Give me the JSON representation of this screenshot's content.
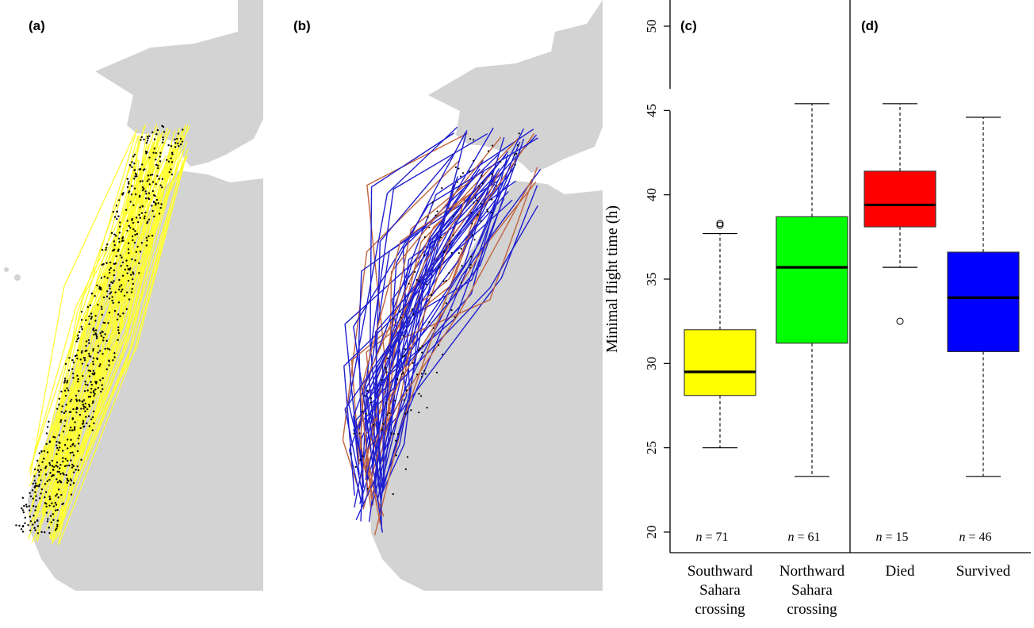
{
  "panels": {
    "a": "(a)",
    "b": "(b)",
    "c": "(c)",
    "d": "(d)"
  },
  "colors": {
    "land": "#d3d3d3",
    "tracks_a": "#ffff33",
    "tracks_b_survived": "#1f1fd0",
    "tracks_b_died": "#c0633f",
    "points": "#000000"
  },
  "chart_data": {
    "type": "box",
    "ylabel": "Minimal flight time (h)",
    "ylim": [
      19.5,
      51
    ],
    "yticks": [
      20,
      25,
      30,
      35,
      40,
      45,
      50
    ],
    "groups": [
      {
        "panel": "(c)",
        "boxes": [
          {
            "label_lines": [
              "Southward",
              "Sahara",
              "crossing"
            ],
            "n_text": "= 71",
            "color": "#ffff00",
            "whisker_low": 25.0,
            "q1": 28.1,
            "median": 29.5,
            "q3": 32.0,
            "whisker_high": 37.7,
            "outliers": [
              38.2,
              38.3
            ]
          },
          {
            "label_lines": [
              "Northward",
              "Sahara",
              "crossing"
            ],
            "n_text": "= 61",
            "color": "#00ff00",
            "whisker_low": 23.3,
            "q1": 31.2,
            "median": 35.7,
            "q3": 38.7,
            "whisker_high": 45.4,
            "outliers": []
          }
        ]
      },
      {
        "panel": "(d)",
        "boxes": [
          {
            "label_lines": [
              "Died"
            ],
            "n_text": "= 15",
            "color": "#ff0000",
            "whisker_low": 35.7,
            "q1": 38.1,
            "median": 39.4,
            "q3": 41.4,
            "whisker_high": 45.4,
            "outliers": [
              32.5
            ]
          },
          {
            "label_lines": [
              "Survived"
            ],
            "n_text": "= 46",
            "color": "#0000ff",
            "whisker_low": 23.3,
            "q1": 30.7,
            "median": 33.9,
            "q3": 36.6,
            "whisker_high": 44.6,
            "outliers": []
          }
        ]
      }
    ]
  }
}
